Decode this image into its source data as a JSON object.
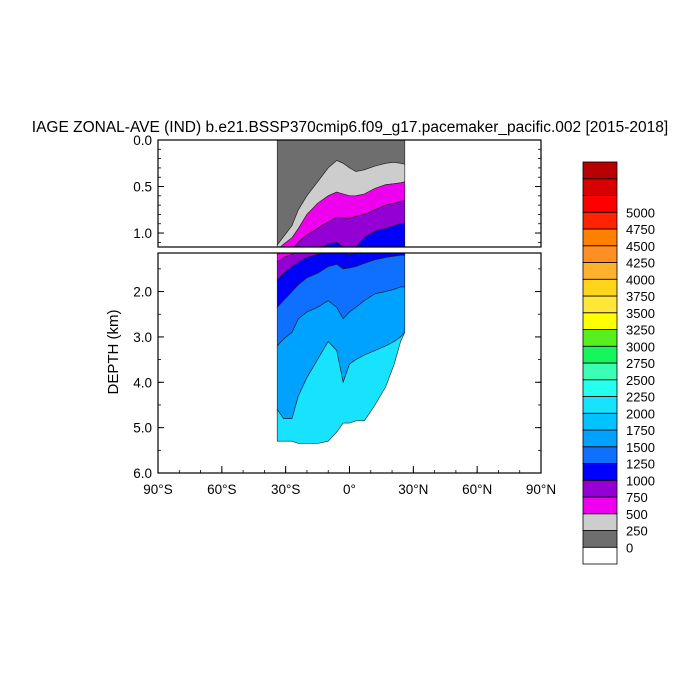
{
  "chart_data": {
    "type": "contour",
    "title": "IAGE ZONAL-AVE (IND) b.e21.BSSP370cmip6.f09_g17.pacemaker_pacific.002 [2015-2018]",
    "ylabel": "DEPTH (km)",
    "xlabel": "",
    "xlim": [
      -90,
      90
    ],
    "x_ticks": [
      {
        "value": -90,
        "label": "90°S"
      },
      {
        "value": -60,
        "label": "60°S"
      },
      {
        "value": -30,
        "label": "30°S"
      },
      {
        "value": 0,
        "label": "0°"
      },
      {
        "value": 30,
        "label": "30°N"
      },
      {
        "value": 60,
        "label": "60°N"
      },
      {
        "value": 90,
        "label": "90°N"
      }
    ],
    "upper_panel": {
      "ylim": [
        0.0,
        1.15
      ],
      "y_ticks": [
        {
          "value": 0.0,
          "label": "0.0"
        },
        {
          "value": 0.5,
          "label": "0.5"
        },
        {
          "value": 1.0,
          "label": "1.0"
        }
      ]
    },
    "lower_panel": {
      "ylim": [
        1.15,
        6.0
      ],
      "y_ticks": [
        {
          "value": 2.0,
          "label": "2.0"
        },
        {
          "value": 3.0,
          "label": "3.0"
        },
        {
          "value": 4.0,
          "label": "4.0"
        },
        {
          "value": 5.0,
          "label": "5.0"
        },
        {
          "value": 6.0,
          "label": "6.0"
        }
      ]
    },
    "levels": [
      0,
      250,
      500,
      750,
      1000,
      1250,
      1500,
      1750,
      2000,
      2250,
      2500,
      2750,
      3000,
      3250,
      3500,
      3750,
      4000,
      4250,
      4500,
      4750,
      5000
    ],
    "colorbar": {
      "colors": [
        "#ffffff",
        "#6e6e6e",
        "#cdcdcd",
        "#ee00ee",
        "#9400d3",
        "#0000ff",
        "#0f6fff",
        "#00a2ff",
        "#00c3ff",
        "#18e3ff",
        "#25ffee",
        "#3bffb2",
        "#17f55c",
        "#57ef1d",
        "#ffff00",
        "#ffe639",
        "#ffd51c",
        "#ffb12e",
        "#ff8f22",
        "#ff7f00",
        "#ff2300",
        "#ff0000",
        "#d90000",
        "#b80000"
      ],
      "labels": [
        "0",
        "250",
        "500",
        "750",
        "1000",
        "1250",
        "1500",
        "1750",
        "2000",
        "2250",
        "2500",
        "2750",
        "3000",
        "3250",
        "3500",
        "3750",
        "4000",
        "4250",
        "4500",
        "4750",
        "5000"
      ]
    },
    "depth_profile": [
      {
        "x": -34,
        "d0": 0.0,
        "d1": 1.13,
        "d2": 1.18,
        "d3": 1.35,
        "d4": 1.75,
        "d5": 2.35,
        "d6": 3.2,
        "d7": 4.6,
        "bottom": 5.3
      },
      {
        "x": -31,
        "d0": 0.0,
        "d1": 1.04,
        "d2": 1.12,
        "d3": 1.25,
        "d4": 1.6,
        "d5": 2.2,
        "d6": 3.05,
        "d7": 4.8,
        "bottom": 5.3
      },
      {
        "x": -27,
        "d0": 0.0,
        "d1": 0.92,
        "d2": 1.05,
        "d3": 1.18,
        "d4": 1.45,
        "d5": 2.0,
        "d6": 2.9,
        "d7": 4.8,
        "bottom": 5.3
      },
      {
        "x": -24,
        "d0": 0.0,
        "d1": 0.75,
        "d2": 0.95,
        "d3": 1.1,
        "d4": 1.35,
        "d5": 1.85,
        "d6": 2.6,
        "d7": 4.3,
        "bottom": 5.35
      },
      {
        "x": -20,
        "d0": 0.0,
        "d1": 0.6,
        "d2": 0.8,
        "d3": 1.02,
        "d4": 1.25,
        "d5": 1.7,
        "d6": 2.45,
        "d7": 3.9,
        "bottom": 5.35
      },
      {
        "x": -15,
        "d0": 0.0,
        "d1": 0.45,
        "d2": 0.68,
        "d3": 0.95,
        "d4": 1.18,
        "d5": 1.6,
        "d6": 2.35,
        "d7": 3.5,
        "bottom": 5.35
      },
      {
        "x": -10,
        "d0": 0.0,
        "d1": 0.3,
        "d2": 0.6,
        "d3": 0.88,
        "d4": 1.12,
        "d5": 1.45,
        "d6": 2.2,
        "d7": 3.1,
        "bottom": 5.3
      },
      {
        "x": -6,
        "d0": 0.0,
        "d1": 0.22,
        "d2": 0.56,
        "d3": 0.83,
        "d4": 1.1,
        "d5": 1.4,
        "d6": 2.35,
        "d7": 3.3,
        "bottom": 5.1
      },
      {
        "x": -3,
        "d0": 0.0,
        "d1": 0.25,
        "d2": 0.58,
        "d3": 0.84,
        "d4": 1.15,
        "d5": 1.5,
        "d6": 2.6,
        "d7": 4.0,
        "bottom": 4.9
      },
      {
        "x": 0,
        "d0": 0.0,
        "d1": 0.3,
        "d2": 0.6,
        "d3": 0.84,
        "d4": 1.18,
        "d5": 1.48,
        "d6": 2.45,
        "d7": 3.6,
        "bottom": 4.9
      },
      {
        "x": 3,
        "d0": 0.0,
        "d1": 0.34,
        "d2": 0.6,
        "d3": 0.82,
        "d4": 1.15,
        "d5": 1.45,
        "d6": 2.35,
        "d7": 3.5,
        "bottom": 4.85
      },
      {
        "x": 7,
        "d0": 0.0,
        "d1": 0.32,
        "d2": 0.58,
        "d3": 0.8,
        "d4": 1.05,
        "d5": 1.38,
        "d6": 2.2,
        "d7": 3.4,
        "bottom": 4.85
      },
      {
        "x": 12,
        "d0": 0.0,
        "d1": 0.28,
        "d2": 0.52,
        "d3": 0.75,
        "d4": 0.98,
        "d5": 1.3,
        "d6": 2.05,
        "d7": 3.3,
        "bottom": 4.5
      },
      {
        "x": 17,
        "d0": 0.0,
        "d1": 0.25,
        "d2": 0.48,
        "d3": 0.7,
        "d4": 0.95,
        "d5": 1.25,
        "d6": 2.0,
        "d7": 3.2,
        "bottom": 4.1
      },
      {
        "x": 21,
        "d0": 0.0,
        "d1": 0.24,
        "d2": 0.47,
        "d3": 0.68,
        "d4": 0.92,
        "d5": 1.22,
        "d6": 1.95,
        "d7": 3.1,
        "bottom": 3.6
      },
      {
        "x": 24,
        "d0": 0.0,
        "d1": 0.25,
        "d2": 0.46,
        "d3": 0.66,
        "d4": 0.9,
        "d5": 1.2,
        "d6": 1.9,
        "d7": 3.0,
        "bottom": 3.1
      },
      {
        "x": 26,
        "d0": 0.0,
        "d1": 0.26,
        "d2": 0.45,
        "d3": 0.65,
        "d4": 0.9,
        "d5": 1.2,
        "d6": 1.9,
        "d7": 3.0,
        "bottom": 2.9
      }
    ]
  }
}
